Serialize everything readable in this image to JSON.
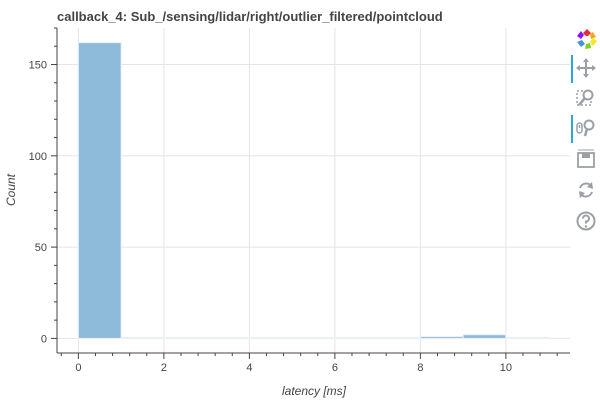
{
  "chart_data": {
    "type": "bar",
    "title": "callback_4: Sub_/sensing/lidar/right/outlier_filtered/pointcloud",
    "xlabel": "latency [ms]",
    "ylabel": "Count",
    "xlim": [
      -0.5,
      11.5
    ],
    "ylim": [
      -8,
      170
    ],
    "xticks": [
      0,
      2,
      4,
      6,
      8,
      10
    ],
    "yticks": [
      0,
      50,
      100,
      150
    ],
    "bin_edges": [
      0,
      1,
      2,
      3,
      4,
      5,
      6,
      7,
      8,
      9,
      10,
      11
    ],
    "values": [
      162,
      0,
      0,
      0,
      0,
      0,
      0,
      0,
      1,
      2,
      0
    ],
    "bar_color": "#8fbbdb",
    "bar_edge_color": "#e6f0f7",
    "grid": true
  },
  "toolbar": {
    "tools": [
      "bokeh-logo-icon",
      "pan-icon",
      "box-zoom-icon",
      "wheel-zoom-icon",
      "save-icon",
      "reset-icon",
      "help-icon"
    ]
  }
}
